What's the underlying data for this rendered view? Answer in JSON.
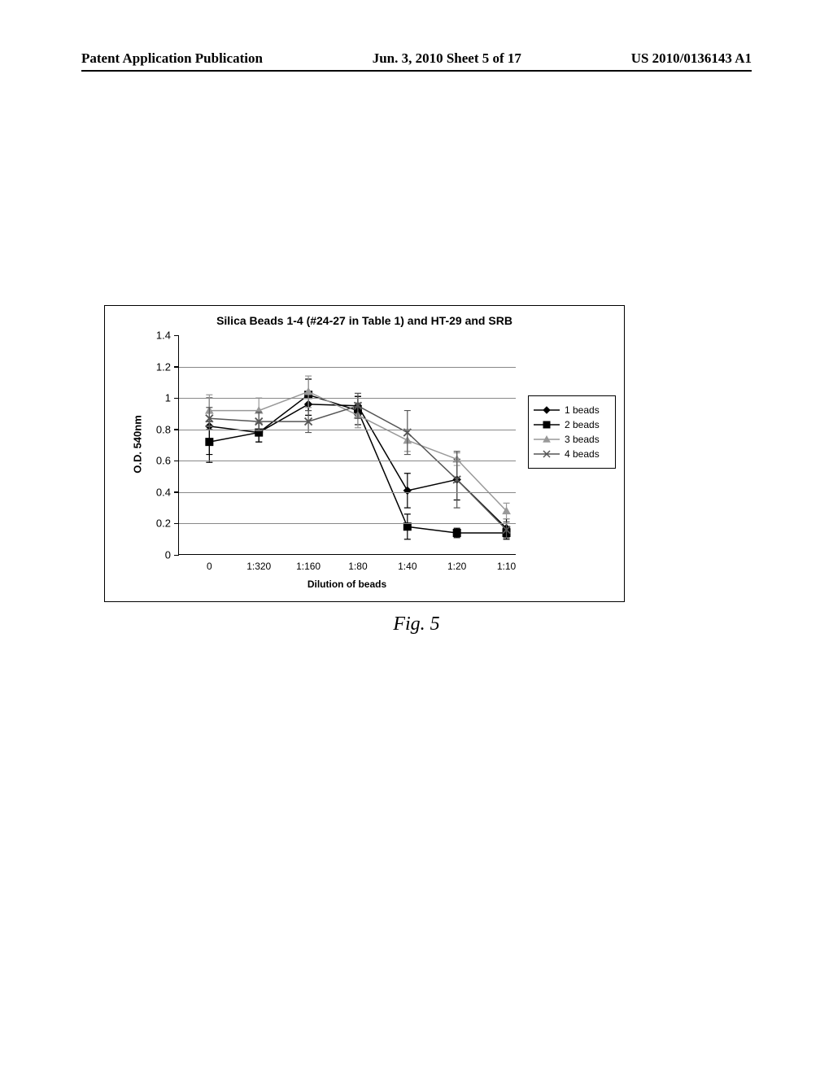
{
  "header": {
    "left": "Patent Application Publication",
    "center": "Jun. 3, 2010  Sheet 5 of 17",
    "right": "US 2010/0136143 A1"
  },
  "figure": {
    "caption": "Fig. 5",
    "chart": {
      "type": "line",
      "title": "Silica Beads 1-4 (#24-27 in Table 1) and HT-29 and SRB",
      "y_axis_title": "O.D. 540nm",
      "x_axis_title": "Dilution of beads",
      "ylim": [
        0,
        1.4
      ],
      "y_ticks": [
        0,
        0.2,
        0.4,
        0.6,
        0.8,
        1,
        1.2,
        1.4
      ],
      "x_categories": [
        "0",
        "1:320",
        "1:160",
        "1:80",
        "1:40",
        "1:20",
        "1:10"
      ],
      "grid_color": "#888888",
      "background_color": "#ffffff",
      "series": [
        {
          "name": "1 beads",
          "marker": "diamond",
          "color": "#000000",
          "values": [
            0.82,
            0.78,
            0.96,
            0.95,
            0.41,
            0.48,
            0.17
          ],
          "errors": [
            0.18,
            0.06,
            0.07,
            0.06,
            0.11,
            0.13,
            0.06
          ]
        },
        {
          "name": "2 beads",
          "marker": "square",
          "color": "#000000",
          "values": [
            0.72,
            0.78,
            1.02,
            0.92,
            0.18,
            0.14,
            0.14
          ],
          "errors": [
            0.13,
            0.06,
            0.1,
            0.09,
            0.08,
            0.03,
            0.04
          ]
        },
        {
          "name": "3 beads",
          "marker": "triangle",
          "color": "#999999",
          "values": [
            0.92,
            0.92,
            1.04,
            0.89,
            0.73,
            0.61,
            0.28
          ],
          "errors": [
            0.1,
            0.08,
            0.1,
            0.08,
            0.07,
            0.04,
            0.05
          ]
        },
        {
          "name": "4 beads",
          "marker": "x",
          "color": "#555555",
          "values": [
            0.87,
            0.85,
            0.85,
            0.95,
            0.78,
            0.48,
            0.16
          ],
          "errors": [
            0.07,
            0.06,
            0.07,
            0.08,
            0.14,
            0.18,
            0.05
          ]
        }
      ],
      "legend_position": "right",
      "title_fontsize": 14,
      "label_fontsize": 12
    }
  }
}
